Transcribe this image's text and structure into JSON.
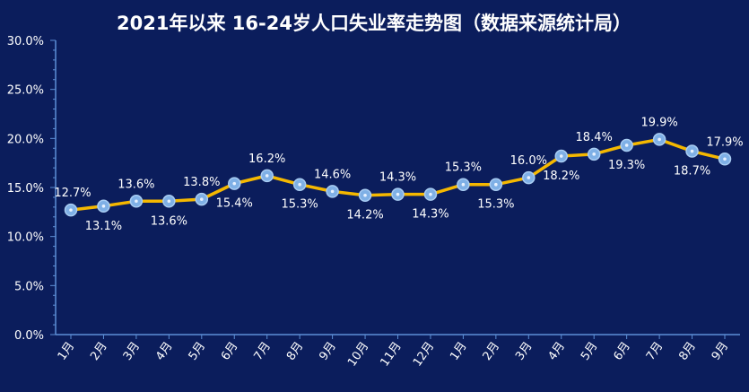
{
  "chart_data": {
    "type": "line",
    "title": "2021年以来 16-24岁人口失业率走势图（数据来源统计局）",
    "categories": [
      "1月",
      "2月",
      "3月",
      "4月",
      "5月",
      "6月",
      "7月",
      "8月",
      "9月",
      "10月",
      "11月",
      "12月",
      "1月",
      "2月",
      "3月",
      "4月",
      "5月",
      "6月",
      "7月",
      "8月",
      "9月"
    ],
    "values": [
      12.7,
      13.1,
      13.6,
      13.6,
      13.8,
      15.4,
      16.2,
      15.3,
      14.6,
      14.2,
      14.3,
      14.3,
      15.3,
      15.3,
      16.0,
      18.2,
      18.4,
      19.3,
      19.9,
      18.7,
      17.9
    ],
    "value_labels": [
      "12.7%",
      "13.1%",
      "13.6%",
      "13.6%",
      "13.8%",
      "15.4%",
      "16.2%",
      "15.3%",
      "14.6%",
      "14.2%",
      "14.3%",
      "14.3%",
      "15.3%",
      "15.3%",
      "16.0%",
      "18.2%",
      "18.4%",
      "19.3%",
      "19.9%",
      "18.7%",
      "17.9%"
    ],
    "y_ticks": [
      "0.0%",
      "5.0%",
      "10.0%",
      "15.0%",
      "20.0%",
      "25.0%",
      "30.0%"
    ],
    "ylim": [
      0,
      30
    ],
    "xlabel": "",
    "ylabel": "",
    "grid": false,
    "colors": {
      "background": "#0b1d5c",
      "line": "#f5b800",
      "marker": "#7fb0e6",
      "axis": "#5d8fd6",
      "text": "#ffffff"
    }
  }
}
